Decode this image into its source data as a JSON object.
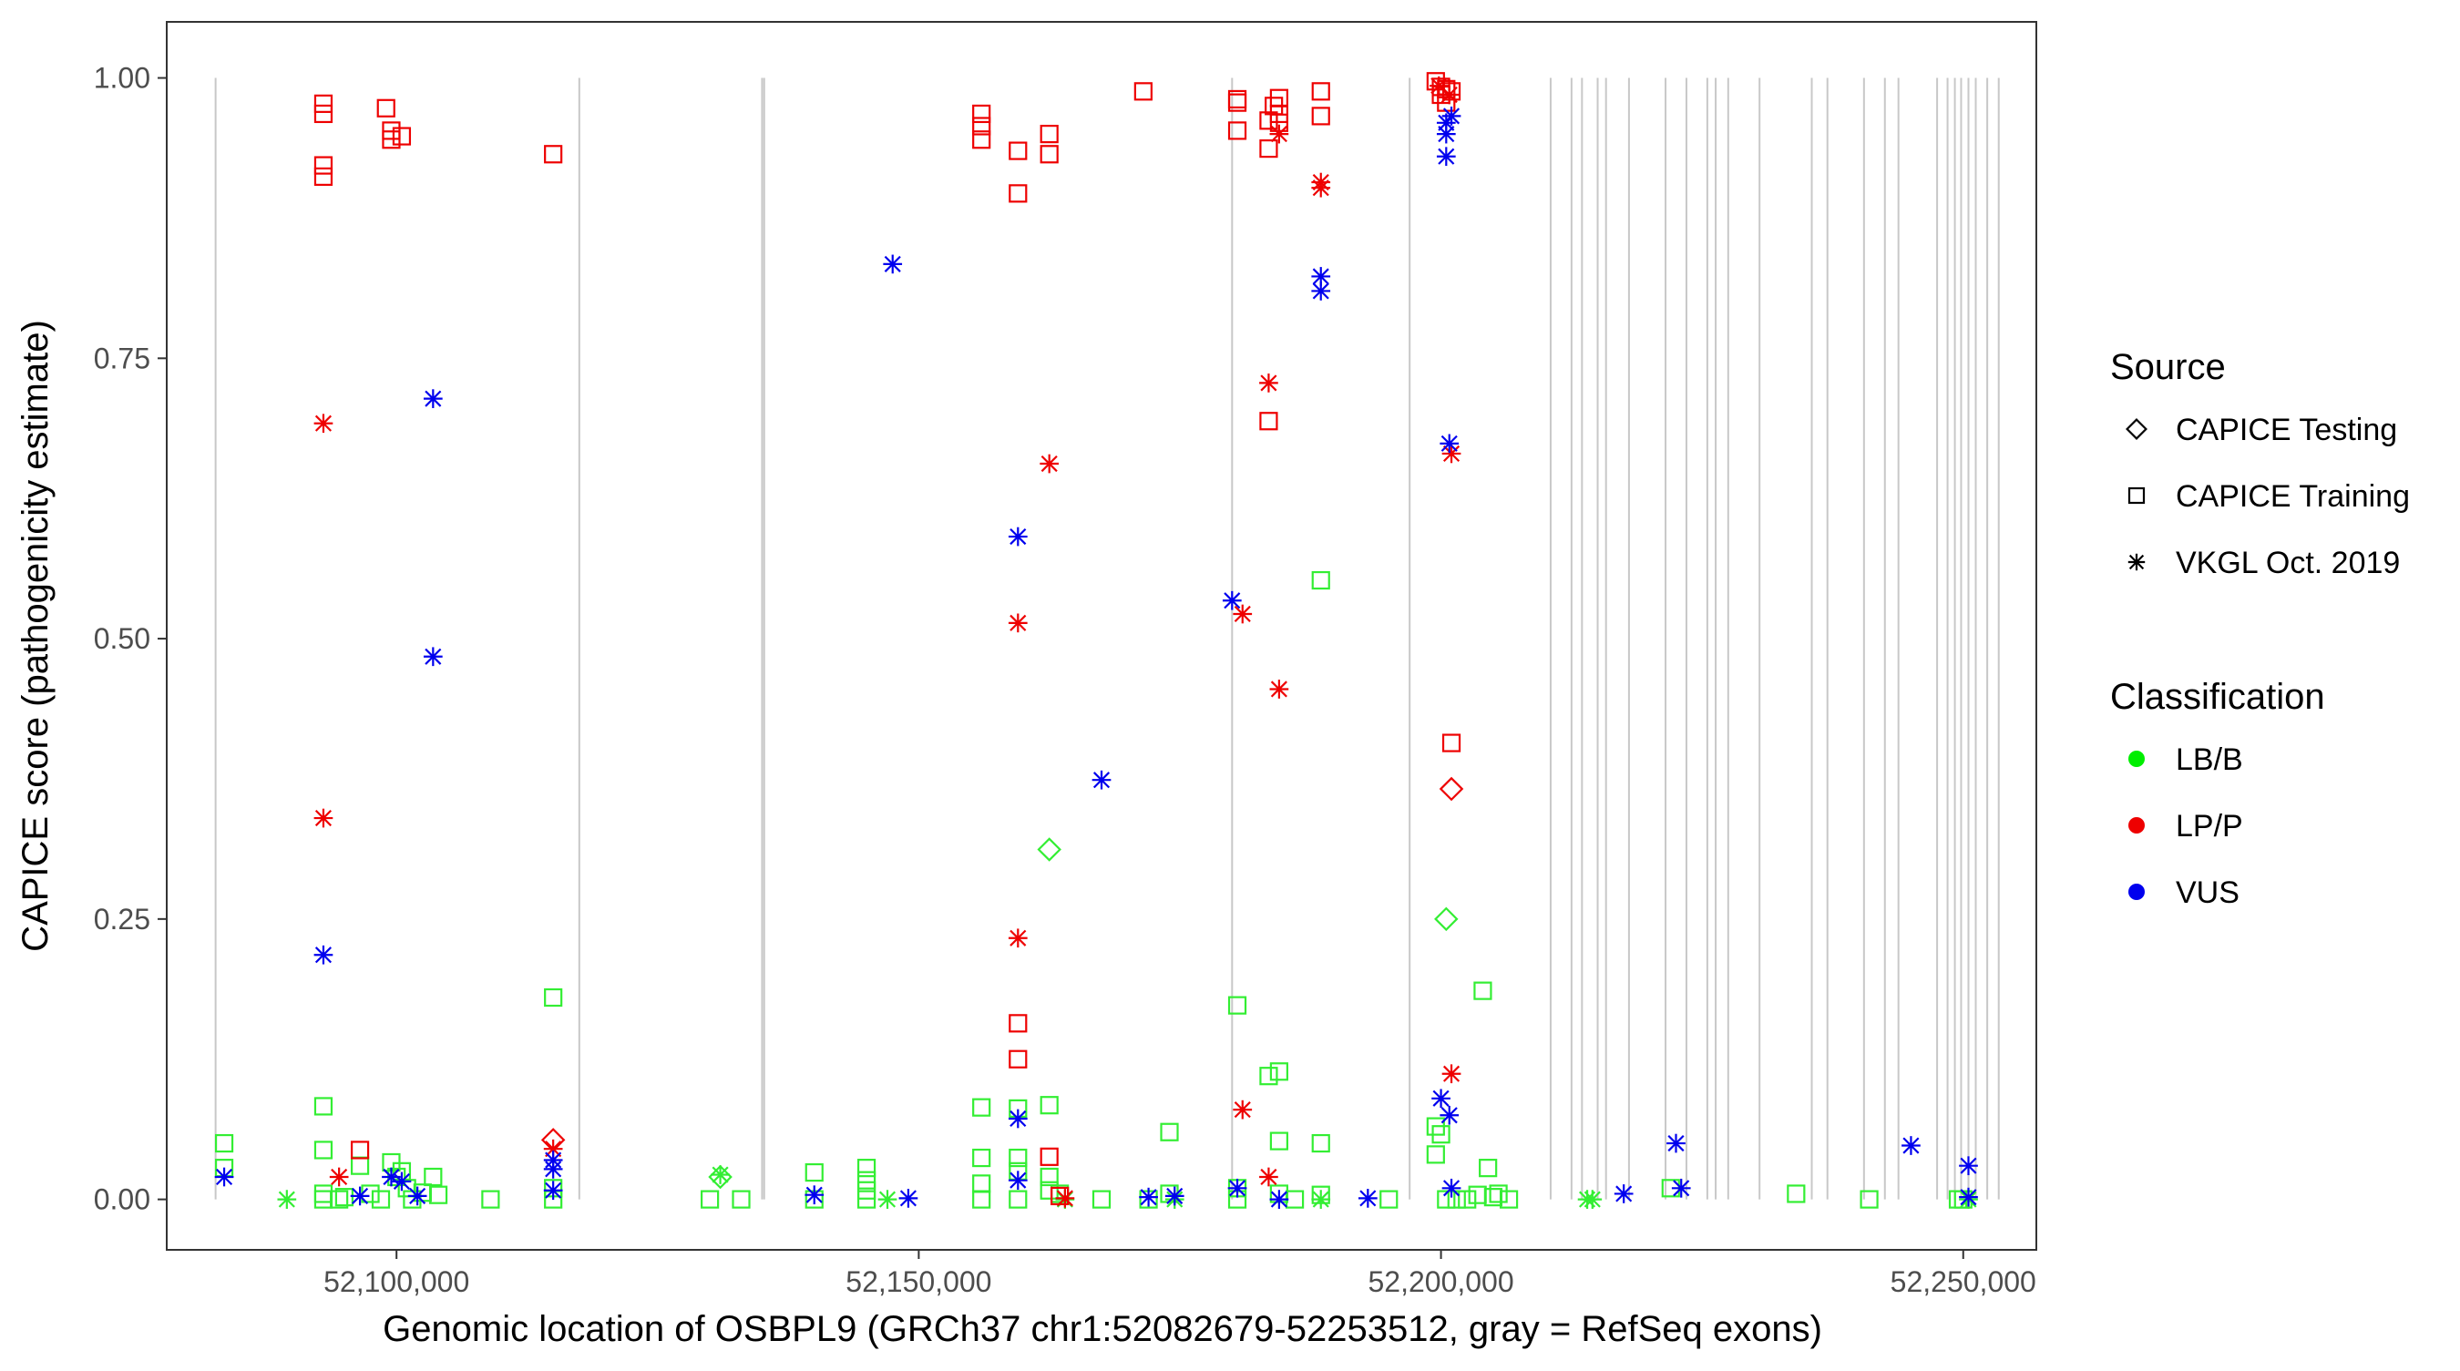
{
  "chart_data": {
    "type": "scatter",
    "title": "",
    "xlabel": "Genomic location of OSBPL9 (GRCh37 chr1:52082679-52253512, gray = RefSeq exons)",
    "ylabel": "CAPICE score (pathogenicity estimate)",
    "xlim": [
      52078000,
      52257000
    ],
    "ylim": [
      -0.045,
      1.05
    ],
    "x_ticks": [
      52100000,
      52150000,
      52200000,
      52250000
    ],
    "x_tick_labels": [
      "52,100,000",
      "52,150,000",
      "52,200,000",
      "52,250,000"
    ],
    "y_ticks": [
      0.0,
      0.25,
      0.5,
      0.75,
      1.0
    ],
    "y_tick_labels": [
      "0.00",
      "0.25",
      "0.50",
      "0.75",
      "1.00"
    ],
    "grid": false,
    "exon_color": "#c8c8c8",
    "exon_positions": [
      52082679,
      52117500,
      52135000,
      52135200,
      52180000,
      52197000,
      52210500,
      52212500,
      52213500,
      52215000,
      52215800,
      52218000,
      52221500,
      52223500,
      52225500,
      52226300,
      52227500,
      52230500,
      52235500,
      52237000,
      52240500,
      52242500,
      52243800,
      52247500,
      52248500,
      52249200,
      52249800,
      52250500,
      52251200,
      52252300,
      52253400
    ],
    "legend": {
      "position": "right",
      "source_title": "Source",
      "source_items": [
        {
          "label": "CAPICE Testing",
          "shape": "diamond"
        },
        {
          "label": "CAPICE Training",
          "shape": "square"
        },
        {
          "label": "VKGL Oct. 2019",
          "shape": "asterisk"
        }
      ],
      "class_title": "Classification",
      "class_items": [
        {
          "label": "LB/B",
          "color": "#00ee00"
        },
        {
          "label": "LP/P",
          "color": "#ee0000"
        },
        {
          "label": "VUS",
          "color": "#0000ee"
        }
      ]
    },
    "series": [
      {
        "name": "LB/B",
        "color": "#33ee33",
        "points": [
          [
            52083500,
            0.05,
            "square"
          ],
          [
            52083500,
            0.028,
            "square"
          ],
          [
            52089500,
            0.0,
            "asterisk"
          ],
          [
            52093000,
            0.083,
            "square"
          ],
          [
            52093000,
            0.044,
            "square"
          ],
          [
            52093000,
            0.005,
            "square"
          ],
          [
            52093000,
            0.0,
            "square"
          ],
          [
            52094500,
            0.0,
            "square"
          ],
          [
            52095000,
            0.002,
            "square"
          ],
          [
            52096500,
            0.03,
            "square"
          ],
          [
            52097500,
            0.005,
            "square"
          ],
          [
            52098500,
            0.0,
            "square"
          ],
          [
            52099500,
            0.033,
            "square"
          ],
          [
            52100000,
            0.02,
            "square"
          ],
          [
            52100500,
            0.025,
            "square"
          ],
          [
            52101000,
            0.01,
            "square"
          ],
          [
            52101500,
            0.0,
            "square"
          ],
          [
            52102500,
            0.006,
            "square"
          ],
          [
            52103500,
            0.02,
            "square"
          ],
          [
            52104000,
            0.004,
            "square"
          ],
          [
            52109000,
            0.0,
            "square"
          ],
          [
            52115000,
            0.18,
            "square"
          ],
          [
            52115000,
            0.01,
            "square"
          ],
          [
            52115000,
            0.0,
            "square"
          ],
          [
            52131000,
            0.02,
            "diamond"
          ],
          [
            52131000,
            0.022,
            "asterisk"
          ],
          [
            52130000,
            0.0,
            "square"
          ],
          [
            52133000,
            0.0,
            "square"
          ],
          [
            52140000,
            0.024,
            "square"
          ],
          [
            52140000,
            0.0,
            "square"
          ],
          [
            52145000,
            0.028,
            "square"
          ],
          [
            52145000,
            0.017,
            "square"
          ],
          [
            52145000,
            0.008,
            "square"
          ],
          [
            52145000,
            0.0,
            "square"
          ],
          [
            52147000,
            0.0,
            "asterisk"
          ],
          [
            52156000,
            0.082,
            "square"
          ],
          [
            52156000,
            0.037,
            "square"
          ],
          [
            52156000,
            0.014,
            "square"
          ],
          [
            52156000,
            0.0,
            "square"
          ],
          [
            52159500,
            0.081,
            "square"
          ],
          [
            52159500,
            0.037,
            "square"
          ],
          [
            52159500,
            0.025,
            "square"
          ],
          [
            52159500,
            0.0,
            "square"
          ],
          [
            52162500,
            0.084,
            "square"
          ],
          [
            52162500,
            0.02,
            "square"
          ],
          [
            52162500,
            0.008,
            "square"
          ],
          [
            52162500,
            0.312,
            "diamond"
          ],
          [
            52163500,
            0.005,
            "square"
          ],
          [
            52164000,
            0.0,
            "asterisk"
          ],
          [
            52167500,
            0.0,
            "square"
          ],
          [
            52172000,
            0.0,
            "square"
          ],
          [
            52174000,
            0.06,
            "square"
          ],
          [
            52174000,
            0.005,
            "square"
          ],
          [
            52174500,
            0.0,
            "asterisk"
          ],
          [
            52180500,
            0.173,
            "square"
          ],
          [
            52180500,
            0.01,
            "square"
          ],
          [
            52180500,
            0.0,
            "square"
          ],
          [
            52183500,
            0.11,
            "square"
          ],
          [
            52184500,
            0.114,
            "square"
          ],
          [
            52184500,
            0.052,
            "square"
          ],
          [
            52184500,
            0.005,
            "square"
          ],
          [
            52186000,
            0.0,
            "square"
          ],
          [
            52188500,
            0.552,
            "square"
          ],
          [
            52188500,
            0.05,
            "square"
          ],
          [
            52188500,
            0.004,
            "square"
          ],
          [
            52188500,
            0.0,
            "asterisk"
          ],
          [
            52195000,
            0.0,
            "square"
          ],
          [
            52199500,
            0.065,
            "square"
          ],
          [
            52199500,
            0.04,
            "square"
          ],
          [
            52200000,
            0.058,
            "square"
          ],
          [
            52200500,
            0.25,
            "diamond"
          ],
          [
            52200500,
            0.0,
            "square"
          ],
          [
            52201500,
            0.0,
            "square"
          ],
          [
            52202500,
            0.0,
            "square"
          ],
          [
            52203500,
            0.004,
            "square"
          ],
          [
            52204000,
            0.186,
            "square"
          ],
          [
            52204500,
            0.028,
            "square"
          ],
          [
            52205000,
            0.002,
            "square"
          ],
          [
            52205500,
            0.005,
            "square"
          ],
          [
            52206500,
            0.0,
            "square"
          ],
          [
            52214000,
            0.0,
            "asterisk"
          ],
          [
            52214500,
            0.0,
            "asterisk"
          ],
          [
            52222000,
            0.01,
            "square"
          ],
          [
            52234000,
            0.005,
            "square"
          ],
          [
            52241000,
            0.0,
            "square"
          ],
          [
            52249500,
            0.0,
            "square"
          ],
          [
            52250000,
            0.0,
            "square"
          ],
          [
            52250500,
            0.0,
            "asterisk"
          ]
        ]
      },
      {
        "name": "LP/P",
        "color": "#ee0000",
        "points": [
          [
            52093000,
            0.977,
            "square"
          ],
          [
            52093000,
            0.968,
            "square"
          ],
          [
            52093000,
            0.922,
            "square"
          ],
          [
            52093000,
            0.912,
            "square"
          ],
          [
            52099000,
            0.973,
            "square"
          ],
          [
            52099500,
            0.953,
            "square"
          ],
          [
            52099500,
            0.945,
            "square"
          ],
          [
            52100500,
            0.948,
            "square"
          ],
          [
            52115000,
            0.932,
            "square"
          ],
          [
            52093000,
            0.692,
            "asterisk"
          ],
          [
            52093000,
            0.34,
            "asterisk"
          ],
          [
            52094500,
            0.02,
            "asterisk"
          ],
          [
            52096500,
            0.044,
            "square"
          ],
          [
            52115000,
            0.053,
            "diamond"
          ],
          [
            52115000,
            0.045,
            "asterisk"
          ],
          [
            52156000,
            0.968,
            "square"
          ],
          [
            52156000,
            0.957,
            "square"
          ],
          [
            52156000,
            0.945,
            "square"
          ],
          [
            52159500,
            0.935,
            "square"
          ],
          [
            52159500,
            0.897,
            "square"
          ],
          [
            52162500,
            0.95,
            "square"
          ],
          [
            52162500,
            0.932,
            "square"
          ],
          [
            52171500,
            0.988,
            "square"
          ],
          [
            52162500,
            0.656,
            "asterisk"
          ],
          [
            52159500,
            0.514,
            "asterisk"
          ],
          [
            52159500,
            0.233,
            "asterisk"
          ],
          [
            52159500,
            0.157,
            "square"
          ],
          [
            52159500,
            0.125,
            "square"
          ],
          [
            52162500,
            0.038,
            "square"
          ],
          [
            52163500,
            0.003,
            "square"
          ],
          [
            52164000,
            0.001,
            "asterisk"
          ],
          [
            52180500,
            0.981,
            "square"
          ],
          [
            52180500,
            0.978,
            "square"
          ],
          [
            52180500,
            0.953,
            "square"
          ],
          [
            52183500,
            0.962,
            "square"
          ],
          [
            52183500,
            0.937,
            "square"
          ],
          [
            52184000,
            0.975,
            "square"
          ],
          [
            52184500,
            0.982,
            "square"
          ],
          [
            52184500,
            0.968,
            "square"
          ],
          [
            52184500,
            0.96,
            "square"
          ],
          [
            52184500,
            0.95,
            "asterisk"
          ],
          [
            52188500,
            0.988,
            "square"
          ],
          [
            52188500,
            0.966,
            "square"
          ],
          [
            52188500,
            0.907,
            "asterisk"
          ],
          [
            52188500,
            0.902,
            "asterisk"
          ],
          [
            52183500,
            0.728,
            "asterisk"
          ],
          [
            52183500,
            0.694,
            "square"
          ],
          [
            52181000,
            0.522,
            "asterisk"
          ],
          [
            52184500,
            0.455,
            "asterisk"
          ],
          [
            52181000,
            0.08,
            "asterisk"
          ],
          [
            52183500,
            0.02,
            "asterisk"
          ],
          [
            52199500,
            0.997,
            "square"
          ],
          [
            52200000,
            0.992,
            "square"
          ],
          [
            52200000,
            0.985,
            "square"
          ],
          [
            52200500,
            0.99,
            "square"
          ],
          [
            52200500,
            0.978,
            "square"
          ],
          [
            52201000,
            0.988,
            "square"
          ],
          [
            52199800,
            0.993,
            "asterisk"
          ],
          [
            52200800,
            0.985,
            "asterisk"
          ],
          [
            52201000,
            0.665,
            "asterisk"
          ],
          [
            52201000,
            0.407,
            "square"
          ],
          [
            52201000,
            0.366,
            "diamond"
          ],
          [
            52201000,
            0.112,
            "asterisk"
          ]
        ]
      },
      {
        "name": "VUS",
        "color": "#0000ee",
        "points": [
          [
            52083500,
            0.02,
            "asterisk"
          ],
          [
            52093000,
            0.218,
            "asterisk"
          ],
          [
            52096500,
            0.003,
            "asterisk"
          ],
          [
            52099500,
            0.02,
            "asterisk"
          ],
          [
            52100500,
            0.016,
            "asterisk"
          ],
          [
            52102000,
            0.003,
            "asterisk"
          ],
          [
            52103500,
            0.714,
            "asterisk"
          ],
          [
            52103500,
            0.484,
            "asterisk"
          ],
          [
            52115000,
            0.035,
            "asterisk"
          ],
          [
            52115000,
            0.027,
            "asterisk"
          ],
          [
            52115000,
            0.008,
            "asterisk"
          ],
          [
            52140000,
            0.004,
            "asterisk"
          ],
          [
            52147500,
            0.834,
            "asterisk"
          ],
          [
            52149000,
            0.001,
            "asterisk"
          ],
          [
            52159500,
            0.591,
            "asterisk"
          ],
          [
            52159500,
            0.072,
            "asterisk"
          ],
          [
            52159500,
            0.017,
            "asterisk"
          ],
          [
            52167500,
            0.374,
            "asterisk"
          ],
          [
            52172000,
            0.002,
            "asterisk"
          ],
          [
            52174500,
            0.003,
            "asterisk"
          ],
          [
            52180000,
            0.534,
            "asterisk"
          ],
          [
            52180500,
            0.01,
            "asterisk"
          ],
          [
            52184500,
            0.0,
            "asterisk"
          ],
          [
            52188500,
            0.823,
            "asterisk"
          ],
          [
            52188500,
            0.81,
            "asterisk"
          ],
          [
            52193000,
            0.001,
            "asterisk"
          ],
          [
            52200500,
            0.96,
            "asterisk"
          ],
          [
            52200500,
            0.95,
            "asterisk"
          ],
          [
            52201000,
            0.966,
            "asterisk"
          ],
          [
            52200500,
            0.93,
            "asterisk"
          ],
          [
            52200800,
            0.674,
            "asterisk"
          ],
          [
            52200000,
            0.09,
            "asterisk"
          ],
          [
            52200800,
            0.075,
            "asterisk"
          ],
          [
            52201000,
            0.01,
            "asterisk"
          ],
          [
            52217500,
            0.005,
            "asterisk"
          ],
          [
            52222500,
            0.05,
            "asterisk"
          ],
          [
            52223000,
            0.01,
            "asterisk"
          ],
          [
            52245000,
            0.048,
            "asterisk"
          ],
          [
            52250500,
            0.03,
            "asterisk"
          ],
          [
            52250500,
            0.002,
            "asterisk"
          ]
        ]
      }
    ]
  }
}
